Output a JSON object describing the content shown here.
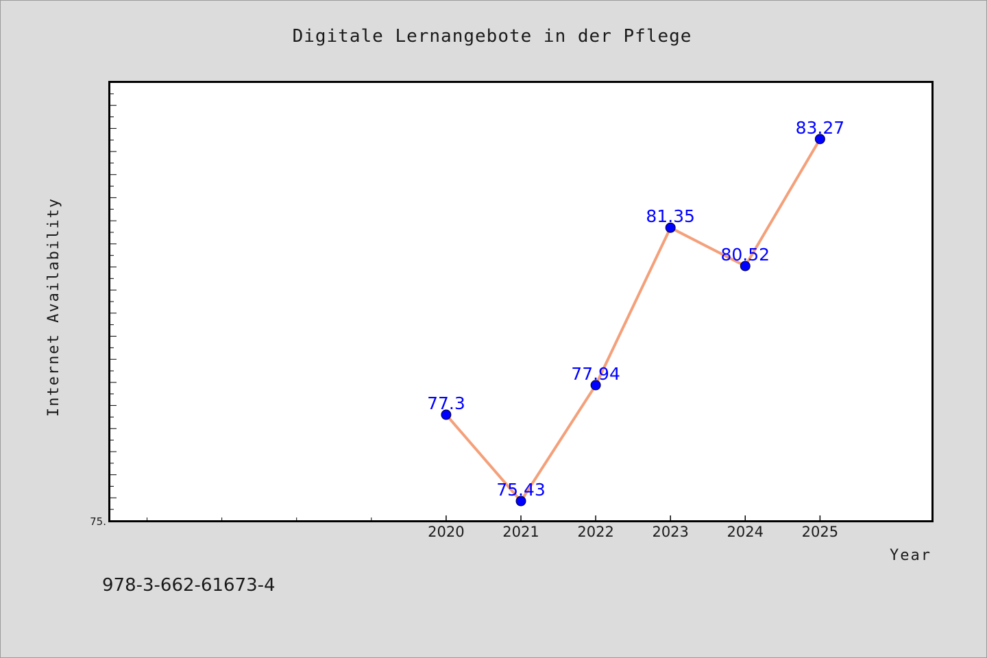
{
  "chart_data": {
    "type": "line",
    "title": "Digitale Lernangebote in der Pflege",
    "xlabel": "Year",
    "ylabel": "Internet Availability",
    "x": [
      2020,
      2021,
      2022,
      2023,
      2024,
      2025
    ],
    "x_tick_labels": [
      "2020",
      "2021",
      "2022",
      "2023",
      "2024",
      "2025"
    ],
    "xlim": [
      2015.5,
      2026.5
    ],
    "ylim": [
      75.0,
      84.5
    ],
    "y_tick_labels": [
      "75."
    ],
    "series": [
      {
        "values": [
          77.3,
          75.43,
          77.94,
          81.35,
          80.52,
          83.27
        ],
        "data_labels": [
          "77.3",
          "75.43",
          "77.94",
          "81.35",
          "80.52",
          "83.27"
        ],
        "line_color": "#f4a07a",
        "marker_color": "#0000ff"
      }
    ],
    "grid": false,
    "legend": "none"
  },
  "footer": {
    "isbn": "978-3-662-61673-4"
  }
}
